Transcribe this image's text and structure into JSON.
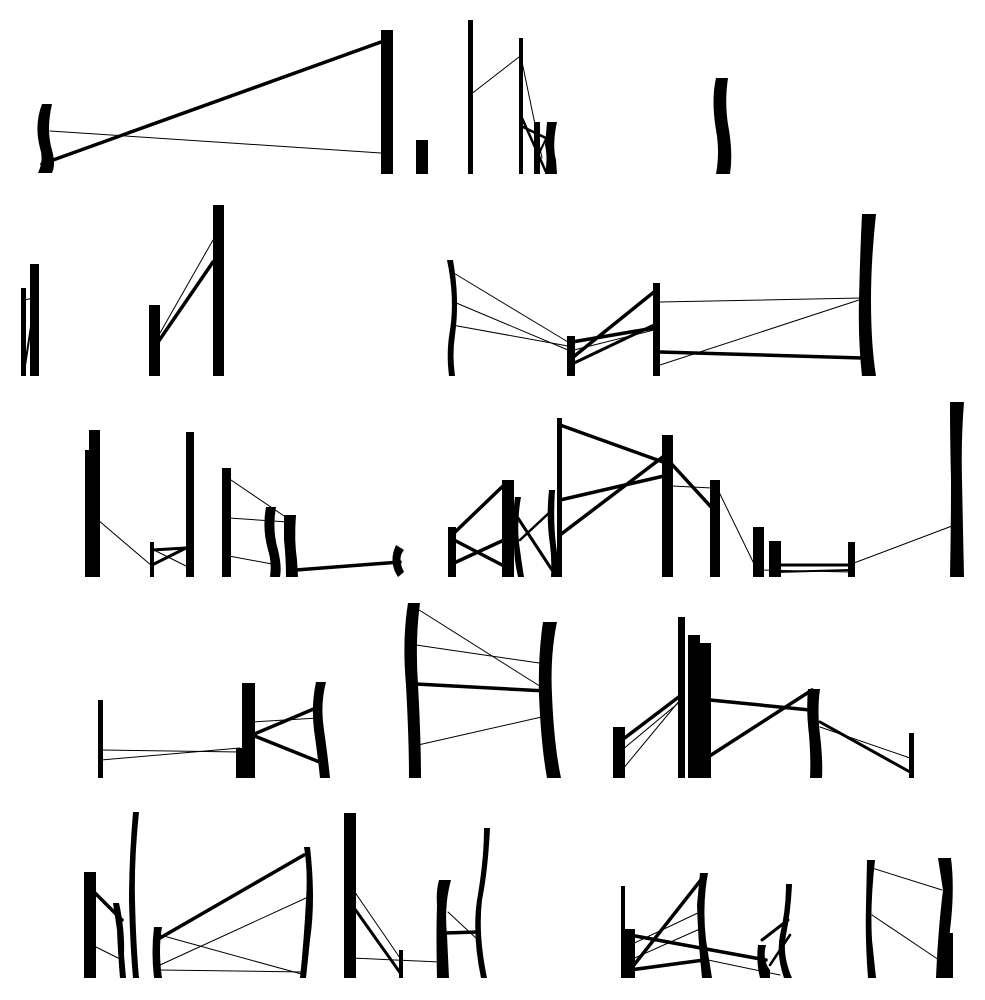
{
  "figure": {
    "description_visible_text": "",
    "colors": {
      "ink": "#000000",
      "background": "#ffffff"
    },
    "row_count": 5
  }
}
